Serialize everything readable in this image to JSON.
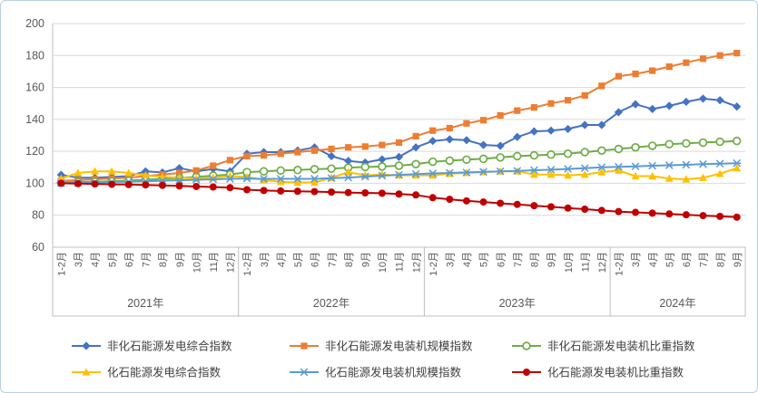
{
  "chart_data": {
    "type": "line",
    "title": "",
    "xlabel": "",
    "ylabel": "",
    "ylim": [
      60,
      200
    ],
    "y_ticks": [
      60,
      80,
      100,
      120,
      140,
      160,
      180,
      200
    ],
    "grid": "horizontal",
    "legend_position": "bottom",
    "x_months": [
      "1-2月",
      "3月",
      "4月",
      "5月",
      "6月",
      "7月",
      "8月",
      "9月",
      "10月",
      "11月",
      "12月",
      "1-2月",
      "3月",
      "4月",
      "5月",
      "6月",
      "7月",
      "8月",
      "9月",
      "10月",
      "11月",
      "12月",
      "1-2月",
      "3月",
      "4月",
      "5月",
      "6月",
      "7月",
      "8月",
      "9月",
      "10月",
      "11月",
      "12月",
      "1-2月",
      "3月",
      "4月",
      "5月",
      "6月",
      "7月",
      "8月",
      "9月"
    ],
    "year_groups": [
      {
        "label": "2021年",
        "count": 11
      },
      {
        "label": "2022年",
        "count": 11
      },
      {
        "label": "2023年",
        "count": 11
      },
      {
        "label": "2024年",
        "count": 8
      }
    ],
    "series": [
      {
        "name": "非化石能源发电综合指数",
        "color": "#4472C4",
        "marker": "diamond",
        "values": [
          105.3,
          103.5,
          103.5,
          104,
          104.5,
          107.5,
          106.8,
          109.5,
          107.5,
          109,
          107.5,
          118.5,
          119.5,
          119.5,
          120.5,
          122.5,
          117,
          114,
          113,
          115,
          116.5,
          122.5,
          126.5,
          127.5,
          127,
          124,
          123.5,
          129,
          132.5,
          133,
          134,
          136.5,
          136.5,
          144.5,
          149.5,
          146.5,
          148.5,
          151,
          153,
          152,
          148
        ]
      },
      {
        "name": "非化石能源发电装机规模指数",
        "color": "#ED7D31",
        "marker": "square",
        "values": [
          101.5,
          102,
          102.5,
          103,
          103.5,
          104.5,
          105.5,
          106.5,
          108,
          111,
          114.5,
          117,
          117.5,
          118.5,
          119.5,
          120.5,
          121.5,
          122.5,
          123,
          124,
          125.5,
          129.5,
          133,
          134.5,
          137.5,
          139.5,
          142.5,
          145.5,
          147.5,
          150,
          152,
          155,
          161,
          167,
          168.5,
          170.5,
          173,
          175.5,
          178,
          180,
          181.5
        ]
      },
      {
        "name": "非化石能源发电装机比重指数",
        "color": "#70AD47",
        "marker": "circle-open",
        "values": [
          100.5,
          100.8,
          101,
          101.3,
          101.7,
          102.2,
          102.8,
          103.3,
          104,
          104.8,
          105.5,
          107,
          107.5,
          108,
          108.3,
          108.8,
          109.2,
          109.8,
          110.2,
          110.5,
          111,
          112,
          113.5,
          114.2,
          114.8,
          115.3,
          116.2,
          117,
          117.5,
          118,
          118.5,
          119.5,
          120.5,
          121.5,
          122.5,
          123.5,
          124.5,
          125,
          125.5,
          126,
          126.5
        ]
      },
      {
        "name": "化石能源发电综合指数",
        "color": "#FFC000",
        "marker": "triangle",
        "values": [
          103,
          106.5,
          107.5,
          107.5,
          106.5,
          105,
          104,
          103.5,
          103,
          103.5,
          104.5,
          104,
          102,
          101,
          100.5,
          100.5,
          103.5,
          107,
          105,
          105.5,
          105,
          105,
          105,
          106,
          106.5,
          107,
          107.5,
          107.5,
          105.5,
          105.5,
          105,
          105.5,
          107,
          108,
          104.5,
          104.5,
          103,
          102.5,
          103.5,
          106,
          109.5
        ]
      },
      {
        "name": "化石能源发电装机规模指数",
        "color": "#5B9BD5",
        "marker": "asterisk",
        "values": [
          100,
          100.3,
          100.5,
          100.8,
          101,
          101.3,
          101.6,
          101.9,
          102.2,
          102.5,
          102.8,
          103,
          102.8,
          102.8,
          102.8,
          102.8,
          103.2,
          103.6,
          104.2,
          104.8,
          105.3,
          105.8,
          106.2,
          106.5,
          106.8,
          107.2,
          107.5,
          107.8,
          108.2,
          108.5,
          109,
          109.5,
          110,
          110.3,
          110.6,
          111,
          111.3,
          111.6,
          112,
          112.3,
          112.6
        ]
      },
      {
        "name": "化石能源发电装机比重指数",
        "color": "#C00000",
        "marker": "circle",
        "values": [
          100,
          99.8,
          99.6,
          99.4,
          99.2,
          99,
          98.7,
          98.4,
          98,
          97.7,
          97.3,
          96,
          95.5,
          95.2,
          95,
          94.8,
          94.5,
          94.2,
          94,
          93.8,
          93.3,
          92.7,
          91,
          90,
          89,
          88.3,
          87.5,
          86.8,
          86,
          85.3,
          84.5,
          83.8,
          83,
          82.3,
          81.8,
          81.3,
          80.8,
          80.3,
          79.8,
          79.3,
          78.8
        ]
      }
    ]
  },
  "colors": {
    "grid": "#D9D9D9",
    "axis": "#BFBFBF",
    "tick_text": "#595959",
    "legend_text": "#404040",
    "frame_border": "#B9CFE0",
    "background": "#FFFFFF"
  }
}
